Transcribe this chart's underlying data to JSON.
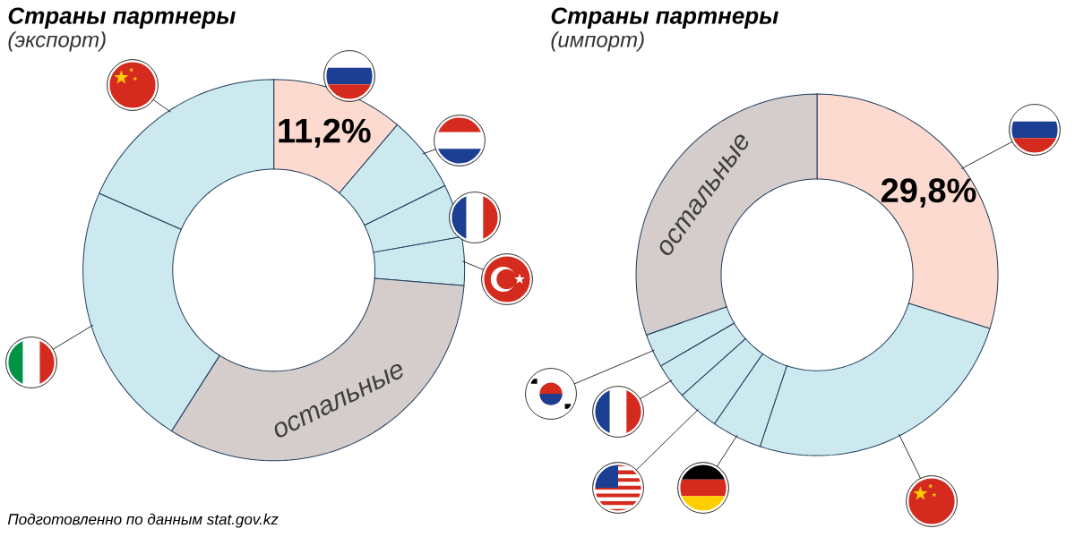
{
  "chart_data": [
    {
      "type": "donut",
      "title": "Страны партнеры",
      "subtitle": "(экспорт)",
      "categories": [
        null,
        null,
        null,
        null,
        "остальные",
        null,
        null
      ],
      "values": [
        11.2,
        6.5,
        4.5,
        4.1,
        32.7,
        22.6,
        18.4
      ],
      "colors": [
        "#fcdad0",
        "#cde9f0",
        "#cde9f0",
        "#cde9f0",
        "#d5cdcc",
        "#cde9f0",
        "#cde9f0"
      ],
      "value_labels": [
        "11,2%",
        null,
        null,
        null,
        null,
        null,
        null
      ],
      "annotations": [
        "Подготовленно по данным stat.gov.kz"
      ]
    },
    {
      "type": "donut",
      "title": "Страны партнеры",
      "subtitle": "(импорт)",
      "categories": [
        null,
        null,
        null,
        null,
        null,
        null,
        "остальные"
      ],
      "values": [
        29.8,
        25.3,
        4.5,
        3.8,
        3.2,
        3.0,
        30.4
      ],
      "colors": [
        "#fcdad0",
        "#cde9f0",
        "#cde9f0",
        "#cde9f0",
        "#cde9f0",
        "#cde9f0",
        "#d5cdcc"
      ],
      "value_labels": [
        "29,8%",
        null,
        null,
        null,
        null,
        null,
        null
      ]
    }
  ]
}
